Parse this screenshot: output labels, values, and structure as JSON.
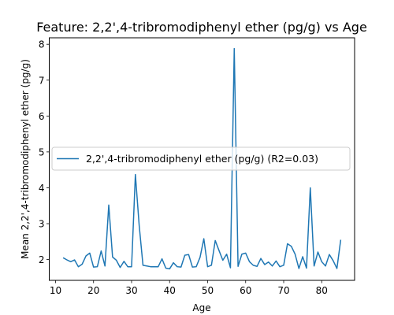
{
  "chart_data": {
    "type": "line",
    "title": "Feature: 2,2',4-tribromodiphenyl ether (pg/g) vs Age",
    "xlabel": "Age",
    "ylabel": "Mean 2,2',4-tribromodiphenyl ether (pg/g)",
    "xlim": [
      8.35,
      88.65
    ],
    "ylim": [
      1.42,
      8.18
    ],
    "xticks": [
      10,
      20,
      30,
      40,
      50,
      60,
      70,
      80
    ],
    "yticks": [
      2,
      3,
      4,
      5,
      6,
      7,
      8
    ],
    "grid": false,
    "legend_position": "center-left",
    "series": [
      {
        "name": "2,2',4-tribromodiphenyl ether (pg/g) (R2=0.03)",
        "color": "#1f77b4",
        "x": [
          12,
          13,
          14,
          15,
          16,
          17,
          18,
          19,
          20,
          21,
          22,
          23,
          24,
          25,
          26,
          27,
          28,
          29,
          30,
          31,
          32,
          33,
          34,
          35,
          36,
          37,
          38,
          39,
          40,
          41,
          42,
          43,
          44,
          45,
          46,
          47,
          48,
          49,
          50,
          51,
          52,
          53,
          54,
          55,
          56,
          57,
          58,
          59,
          60,
          61,
          62,
          63,
          64,
          65,
          66,
          67,
          68,
          69,
          70,
          71,
          72,
          73,
          74,
          75,
          76,
          77,
          78,
          79,
          80,
          81,
          82,
          83,
          84,
          85
        ],
        "y": [
          2.05,
          1.99,
          1.94,
          1.99,
          1.8,
          1.87,
          2.1,
          2.18,
          1.79,
          1.8,
          2.24,
          1.82,
          3.52,
          2.07,
          1.98,
          1.78,
          1.95,
          1.8,
          1.8,
          4.37,
          2.95,
          1.84,
          1.82,
          1.8,
          1.8,
          1.8,
          2.02,
          1.76,
          1.74,
          1.91,
          1.8,
          1.79,
          2.12,
          2.14,
          1.79,
          1.8,
          2.06,
          2.58,
          1.8,
          1.84,
          2.53,
          2.25,
          1.98,
          2.15,
          1.77,
          7.88,
          1.81,
          2.15,
          2.18,
          1.94,
          1.84,
          1.81,
          2.03,
          1.86,
          1.93,
          1.82,
          1.96,
          1.8,
          1.84,
          2.44,
          2.37,
          2.15,
          1.75,
          2.08,
          1.76,
          4.0,
          1.82,
          2.21,
          1.94,
          1.82,
          2.14,
          1.97,
          1.75,
          2.55
        ]
      }
    ]
  }
}
